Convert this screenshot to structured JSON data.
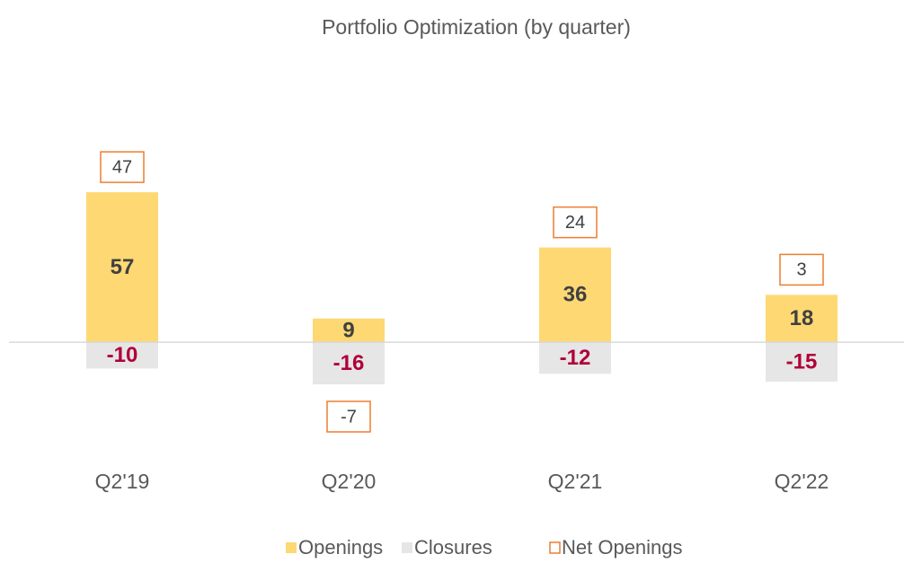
{
  "chart_data": {
    "type": "bar",
    "title": "Portfolio Optimization (by quarter)",
    "categories": [
      "Q2'19",
      "Q2'20",
      "Q2'21",
      "Q2'22"
    ],
    "series": [
      {
        "name": "Openings",
        "color": "#fdd873",
        "values": [
          57,
          9,
          36,
          18
        ]
      },
      {
        "name": "Closures",
        "color": "#e6e6e6",
        "values": [
          -10,
          -16,
          -12,
          -15
        ]
      },
      {
        "name": "Net Openings",
        "color": "#ed7d31",
        "values": [
          47,
          -7,
          24,
          3
        ]
      }
    ],
    "ylim": [
      -30,
      70
    ]
  }
}
